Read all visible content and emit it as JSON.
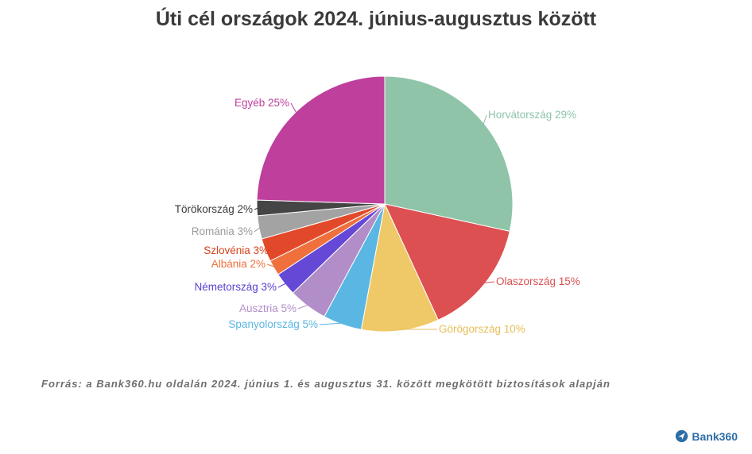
{
  "chart_data": {
    "type": "pie",
    "title": "Úti cél országok 2024. június-augusztus között",
    "unit": "%",
    "slices": [
      {
        "label": "Horvátország",
        "value": 29,
        "color": "#8fc4a8"
      },
      {
        "label": "Olaszország",
        "value": 15,
        "color": "#dc5052"
      },
      {
        "label": "Görögország",
        "value": 10,
        "color": "#efc967"
      },
      {
        "label": "Spanyolország",
        "value": 5,
        "color": "#5ab6e3"
      },
      {
        "label": "Ausztria",
        "value": 5,
        "color": "#b28ec9"
      },
      {
        "label": "Németország",
        "value": 3,
        "color": "#6549d6"
      },
      {
        "label": "Albánia",
        "value": 2,
        "color": "#f0703d"
      },
      {
        "label": "Szlovénia",
        "value": 3,
        "color": "#e2492a"
      },
      {
        "label": "Románia",
        "value": 3,
        "color": "#a3a3a3"
      },
      {
        "label": "Törökország",
        "value": 2,
        "color": "#454545"
      },
      {
        "label": "Egyéb",
        "value": 25,
        "color": "#bf3f9c"
      }
    ],
    "label_texts": [
      "Horvátország 29%",
      "Olaszország 15%",
      "Görögország 10%",
      "Spanyolország 5%",
      "Ausztria 5%",
      "Németország 3%",
      "Albánia 2%",
      "Szlovénia 3%",
      "Románia 3%",
      "Törökország 2%",
      "Egyéb 25%"
    ],
    "label_colors": [
      "#8fc4a8",
      "#dc5052",
      "#e7bf57",
      "#5ab6e3",
      "#b28ec9",
      "#5a3fd0",
      "#f0703d",
      "#d8421f",
      "#9a9a9a",
      "#3a3a3a",
      "#bf3f9c"
    ]
  },
  "footer": {
    "source": "Forrás: a Bank360.hu oldalán 2024. június 1. és augusztus 31. között megkötött biztosítások alapján",
    "brand": "Bank360"
  }
}
